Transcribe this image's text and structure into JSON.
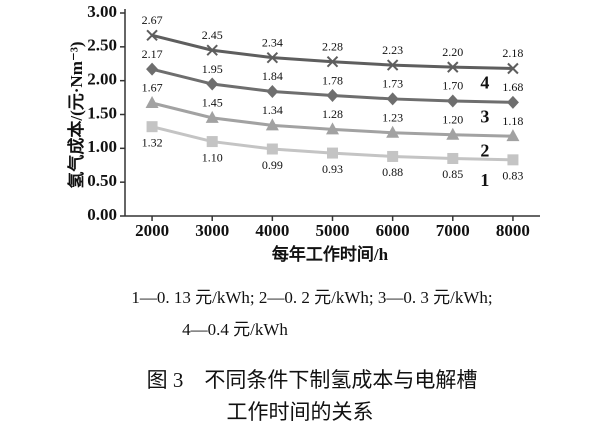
{
  "chart_data": {
    "type": "line",
    "x_label": "每年工作时间/h",
    "y_label": "氢气成本/(元·Nm⁻³)",
    "x": [
      2000,
      3000,
      4000,
      5000,
      6000,
      7000,
      8000
    ],
    "xlim": [
      1550,
      8450
    ],
    "xticks": [
      2000,
      3000,
      4000,
      5000,
      6000,
      7000,
      8000
    ],
    "ylim": [
      0,
      3
    ],
    "yticks": [
      {
        "value": 0,
        "label": "0.00"
      },
      {
        "value": 0.5,
        "label": "0.50"
      },
      {
        "value": 1,
        "label": "1.00"
      },
      {
        "value": 1.5,
        "label": "1.50"
      },
      {
        "value": 2,
        "label": "2.00"
      },
      {
        "value": 2.5,
        "label": "2.50"
      },
      {
        "value": 3,
        "label": "3.00"
      }
    ],
    "series": [
      {
        "name": "1",
        "color": "#c4c4c4",
        "marker": "square",
        "values": [
          1.32,
          1.1,
          0.99,
          0.93,
          0.88,
          0.85,
          0.83
        ],
        "value_labels": [
          "1.32",
          "1.10",
          "0.99",
          "0.93",
          "0.88",
          "0.85",
          "0.83"
        ]
      },
      {
        "name": "2",
        "color": "#a2a2a2",
        "marker": "triangle",
        "values": [
          1.67,
          1.45,
          1.34,
          1.28,
          1.23,
          1.2,
          1.18
        ],
        "value_labels": [
          "1.67",
          "1.45",
          "1.34",
          "1.28",
          "1.23",
          "1.20",
          "1.18"
        ]
      },
      {
        "name": "3",
        "color": "#6e6e6e",
        "marker": "diamond",
        "values": [
          2.17,
          1.95,
          1.84,
          1.78,
          1.73,
          1.7,
          1.68
        ],
        "value_labels": [
          "2.17",
          "1.95",
          "1.84",
          "1.78",
          "1.73",
          "1.70",
          "1.68"
        ]
      },
      {
        "name": "4",
        "color": "#5e5e5e",
        "marker": "x",
        "values": [
          2.67,
          2.45,
          2.34,
          2.28,
          2.23,
          2.2,
          2.18
        ],
        "value_labels": [
          "2.67",
          "2.45",
          "2.34",
          "2.28",
          "2.23",
          "2.20",
          "2.18"
        ]
      }
    ],
    "notes": [
      "1—0. 13 元/kWh; 2—0. 2 元/kWh; 3—0. 3 元/kWh;",
      "4—0.4 元/kWh"
    ],
    "caption": [
      "图 3　不同条件下制氢成本与电解槽",
      "工作时间的关系"
    ]
  }
}
